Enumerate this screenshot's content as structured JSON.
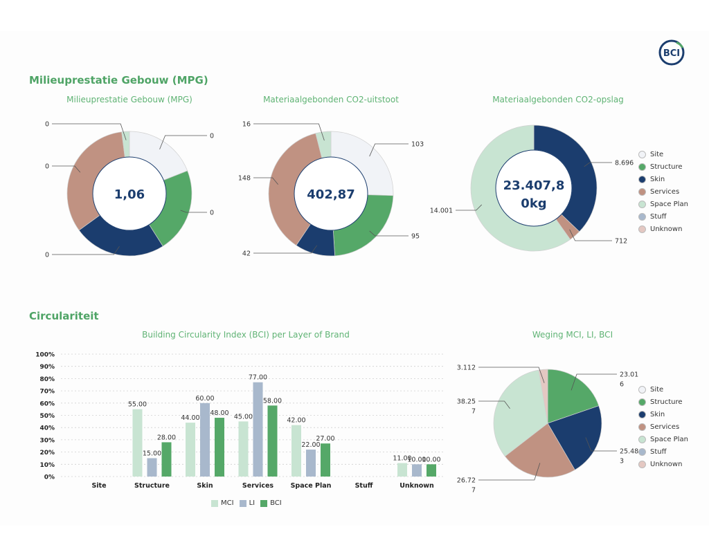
{
  "logo": {
    "text": "BCI"
  },
  "sections": {
    "mpg_title": "Milieuprestatie Gebouw (MPG)",
    "circ_title": "Circulariteit"
  },
  "colors": {
    "Site": "#f1f3f7",
    "Structure": "#55a868",
    "Skin": "#1b3d6e",
    "Services": "#c09282",
    "Space Plan": "#c8e4d2",
    "Stuff": "#a8b8cc",
    "Unknown": "#e4c8c2",
    "MCI": "#c8e4d2",
    "LI": "#a8b8cc",
    "BCI": "#55a868",
    "title_green": "#4fa466",
    "center_text": "#1b3d6e"
  },
  "legend": [
    "Site",
    "Structure",
    "Skin",
    "Services",
    "Space Plan",
    "Stuff",
    "Unknown"
  ],
  "chart_data": [
    {
      "type": "pie",
      "title": "Milieuprestatie Gebouw (MPG)",
      "center_label": "1,06",
      "slices": [
        {
          "name": "Site",
          "weight": 19,
          "label": "0"
        },
        {
          "name": "Structure",
          "weight": 22,
          "label": "0"
        },
        {
          "name": "Skin",
          "weight": 24,
          "label": "0"
        },
        {
          "name": "Services",
          "weight": 33,
          "label": "0"
        },
        {
          "name": "Space Plan",
          "weight": 2,
          "label": "0"
        }
      ]
    },
    {
      "type": "pie",
      "title": "Materiaalgebonden CO2-uitstoot",
      "center_label": "402,87",
      "slices": [
        {
          "name": "Site",
          "weight": 103,
          "label": "103"
        },
        {
          "name": "Structure",
          "weight": 95,
          "label": "95"
        },
        {
          "name": "Skin",
          "weight": 42,
          "label": "42"
        },
        {
          "name": "Services",
          "weight": 148,
          "label": "148"
        },
        {
          "name": "Space Plan",
          "weight": 16,
          "label": "16"
        }
      ]
    },
    {
      "type": "pie",
      "title": "Materiaalgebonden CO2-opslag",
      "center_label_lines": [
        "23.407,8",
        "0kg"
      ],
      "slices": [
        {
          "name": "Skin",
          "weight": 8696,
          "label": "8.696"
        },
        {
          "name": "Services",
          "weight": 712,
          "label": "712"
        },
        {
          "name": "Space Plan",
          "weight": 14001,
          "label": "14.001"
        }
      ]
    },
    {
      "type": "bar",
      "title": "Building Circularity Index (BCI) per Layer of Brand",
      "categories": [
        "Site",
        "Structure",
        "Skin",
        "Services",
        "Space Plan",
        "Stuff",
        "Unknown"
      ],
      "yticks": [
        "0%",
        "10%",
        "20%",
        "30%",
        "40%",
        "50%",
        "60%",
        "70%",
        "80%",
        "90%",
        "100%"
      ],
      "ylim": [
        0,
        100
      ],
      "grid": true,
      "legend_position": "bottom",
      "series": [
        {
          "name": "MCI",
          "values": [
            null,
            55,
            44,
            45,
            42,
            null,
            11
          ],
          "labels": [
            "",
            "55.00",
            "44.00",
            "45.00",
            "42.00",
            "",
            "11.00"
          ]
        },
        {
          "name": "LI",
          "values": [
            null,
            15,
            60,
            77,
            22,
            null,
            10
          ],
          "labels": [
            "",
            "15.00",
            "60.00",
            "77.00",
            "22.00",
            "",
            "10.00"
          ]
        },
        {
          "name": "BCI",
          "values": [
            null,
            28,
            48,
            58,
            27,
            null,
            10
          ],
          "labels": [
            "",
            "28.00",
            "48.00",
            "58.00",
            "27.00",
            "",
            "10.00"
          ]
        }
      ]
    },
    {
      "type": "pie",
      "title": "Weging MCI, LI, BCI",
      "slices": [
        {
          "name": "Structure",
          "weight": 23.016,
          "label_lines": [
            "23.01",
            "6"
          ]
        },
        {
          "name": "Skin",
          "weight": 25.483,
          "label_lines": [
            "25.48",
            "3"
          ]
        },
        {
          "name": "Services",
          "weight": 26.727,
          "label_lines": [
            "26.72",
            "7"
          ]
        },
        {
          "name": "Space Plan",
          "weight": 38.257,
          "label_lines": [
            "38.25",
            "7"
          ]
        },
        {
          "name": "Unknown",
          "weight": 3.112,
          "label_lines": [
            "3.112"
          ]
        }
      ]
    }
  ]
}
